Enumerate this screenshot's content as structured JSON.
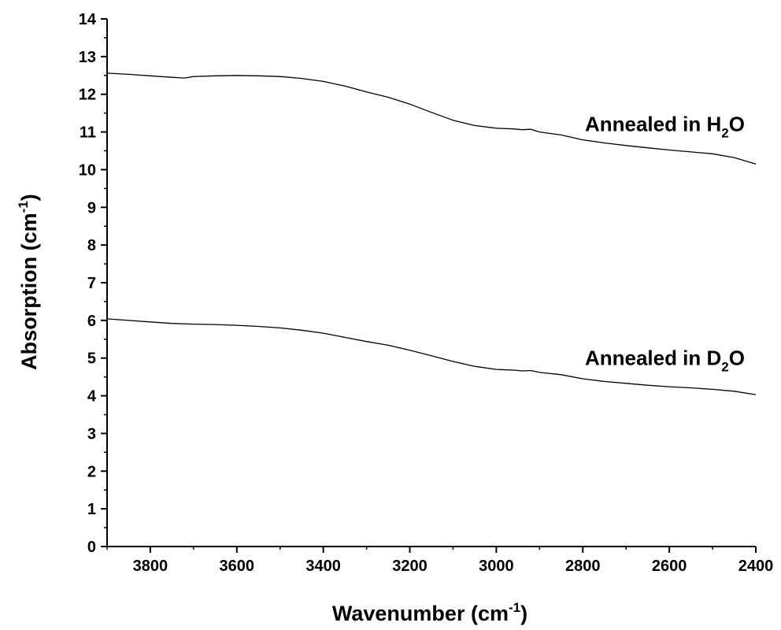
{
  "chart_data": {
    "type": "line",
    "xlabel": {
      "text": "Wavenumber (cm",
      "sup": "-1",
      "close": ")"
    },
    "ylabel": {
      "text": "Absorption (cm",
      "sup": "-1",
      "close": ")"
    },
    "xlim": [
      3900,
      2400
    ],
    "ylim": [
      0,
      14
    ],
    "x_reversed": true,
    "x_ticks": [
      3800,
      3600,
      3400,
      3200,
      3000,
      2800,
      2600,
      2400
    ],
    "y_ticks": [
      0,
      1,
      2,
      3,
      4,
      5,
      6,
      7,
      8,
      9,
      10,
      11,
      12,
      13,
      14
    ],
    "grid": false,
    "line_color": "#000000",
    "series": [
      {
        "name": "Annealed in H2O",
        "annotation": {
          "pre": "Annealed in H",
          "sub": "2",
          "post": "O"
        },
        "x": [
          3900,
          3850,
          3800,
          3750,
          3720,
          3700,
          3650,
          3600,
          3550,
          3500,
          3450,
          3400,
          3350,
          3300,
          3250,
          3200,
          3150,
          3100,
          3050,
          3000,
          2960,
          2940,
          2920,
          2900,
          2850,
          2800,
          2750,
          2700,
          2650,
          2600,
          2550,
          2500,
          2450,
          2400
        ],
        "values": [
          12.56,
          12.53,
          12.49,
          12.45,
          12.43,
          12.47,
          12.49,
          12.5,
          12.49,
          12.47,
          12.42,
          12.34,
          12.22,
          12.06,
          11.92,
          11.74,
          11.52,
          11.31,
          11.17,
          11.1,
          11.08,
          11.06,
          11.07,
          11.0,
          10.92,
          10.79,
          10.71,
          10.64,
          10.58,
          10.52,
          10.47,
          10.42,
          10.32,
          10.15
        ]
      },
      {
        "name": "Annealed in D2O",
        "annotation": {
          "pre": "Annealed in D",
          "sub": "2",
          "post": "O"
        },
        "x": [
          3900,
          3850,
          3800,
          3750,
          3700,
          3650,
          3600,
          3550,
          3500,
          3450,
          3400,
          3350,
          3300,
          3250,
          3200,
          3150,
          3100,
          3050,
          3000,
          2960,
          2940,
          2920,
          2900,
          2850,
          2800,
          2750,
          2700,
          2650,
          2600,
          2550,
          2500,
          2450,
          2400
        ],
        "values": [
          6.04,
          6.0,
          5.96,
          5.92,
          5.9,
          5.89,
          5.87,
          5.84,
          5.8,
          5.74,
          5.66,
          5.55,
          5.44,
          5.34,
          5.21,
          5.06,
          4.91,
          4.78,
          4.7,
          4.68,
          4.66,
          4.67,
          4.62,
          4.56,
          4.45,
          4.38,
          4.33,
          4.28,
          4.24,
          4.21,
          4.17,
          4.12,
          4.03
        ]
      }
    ]
  }
}
